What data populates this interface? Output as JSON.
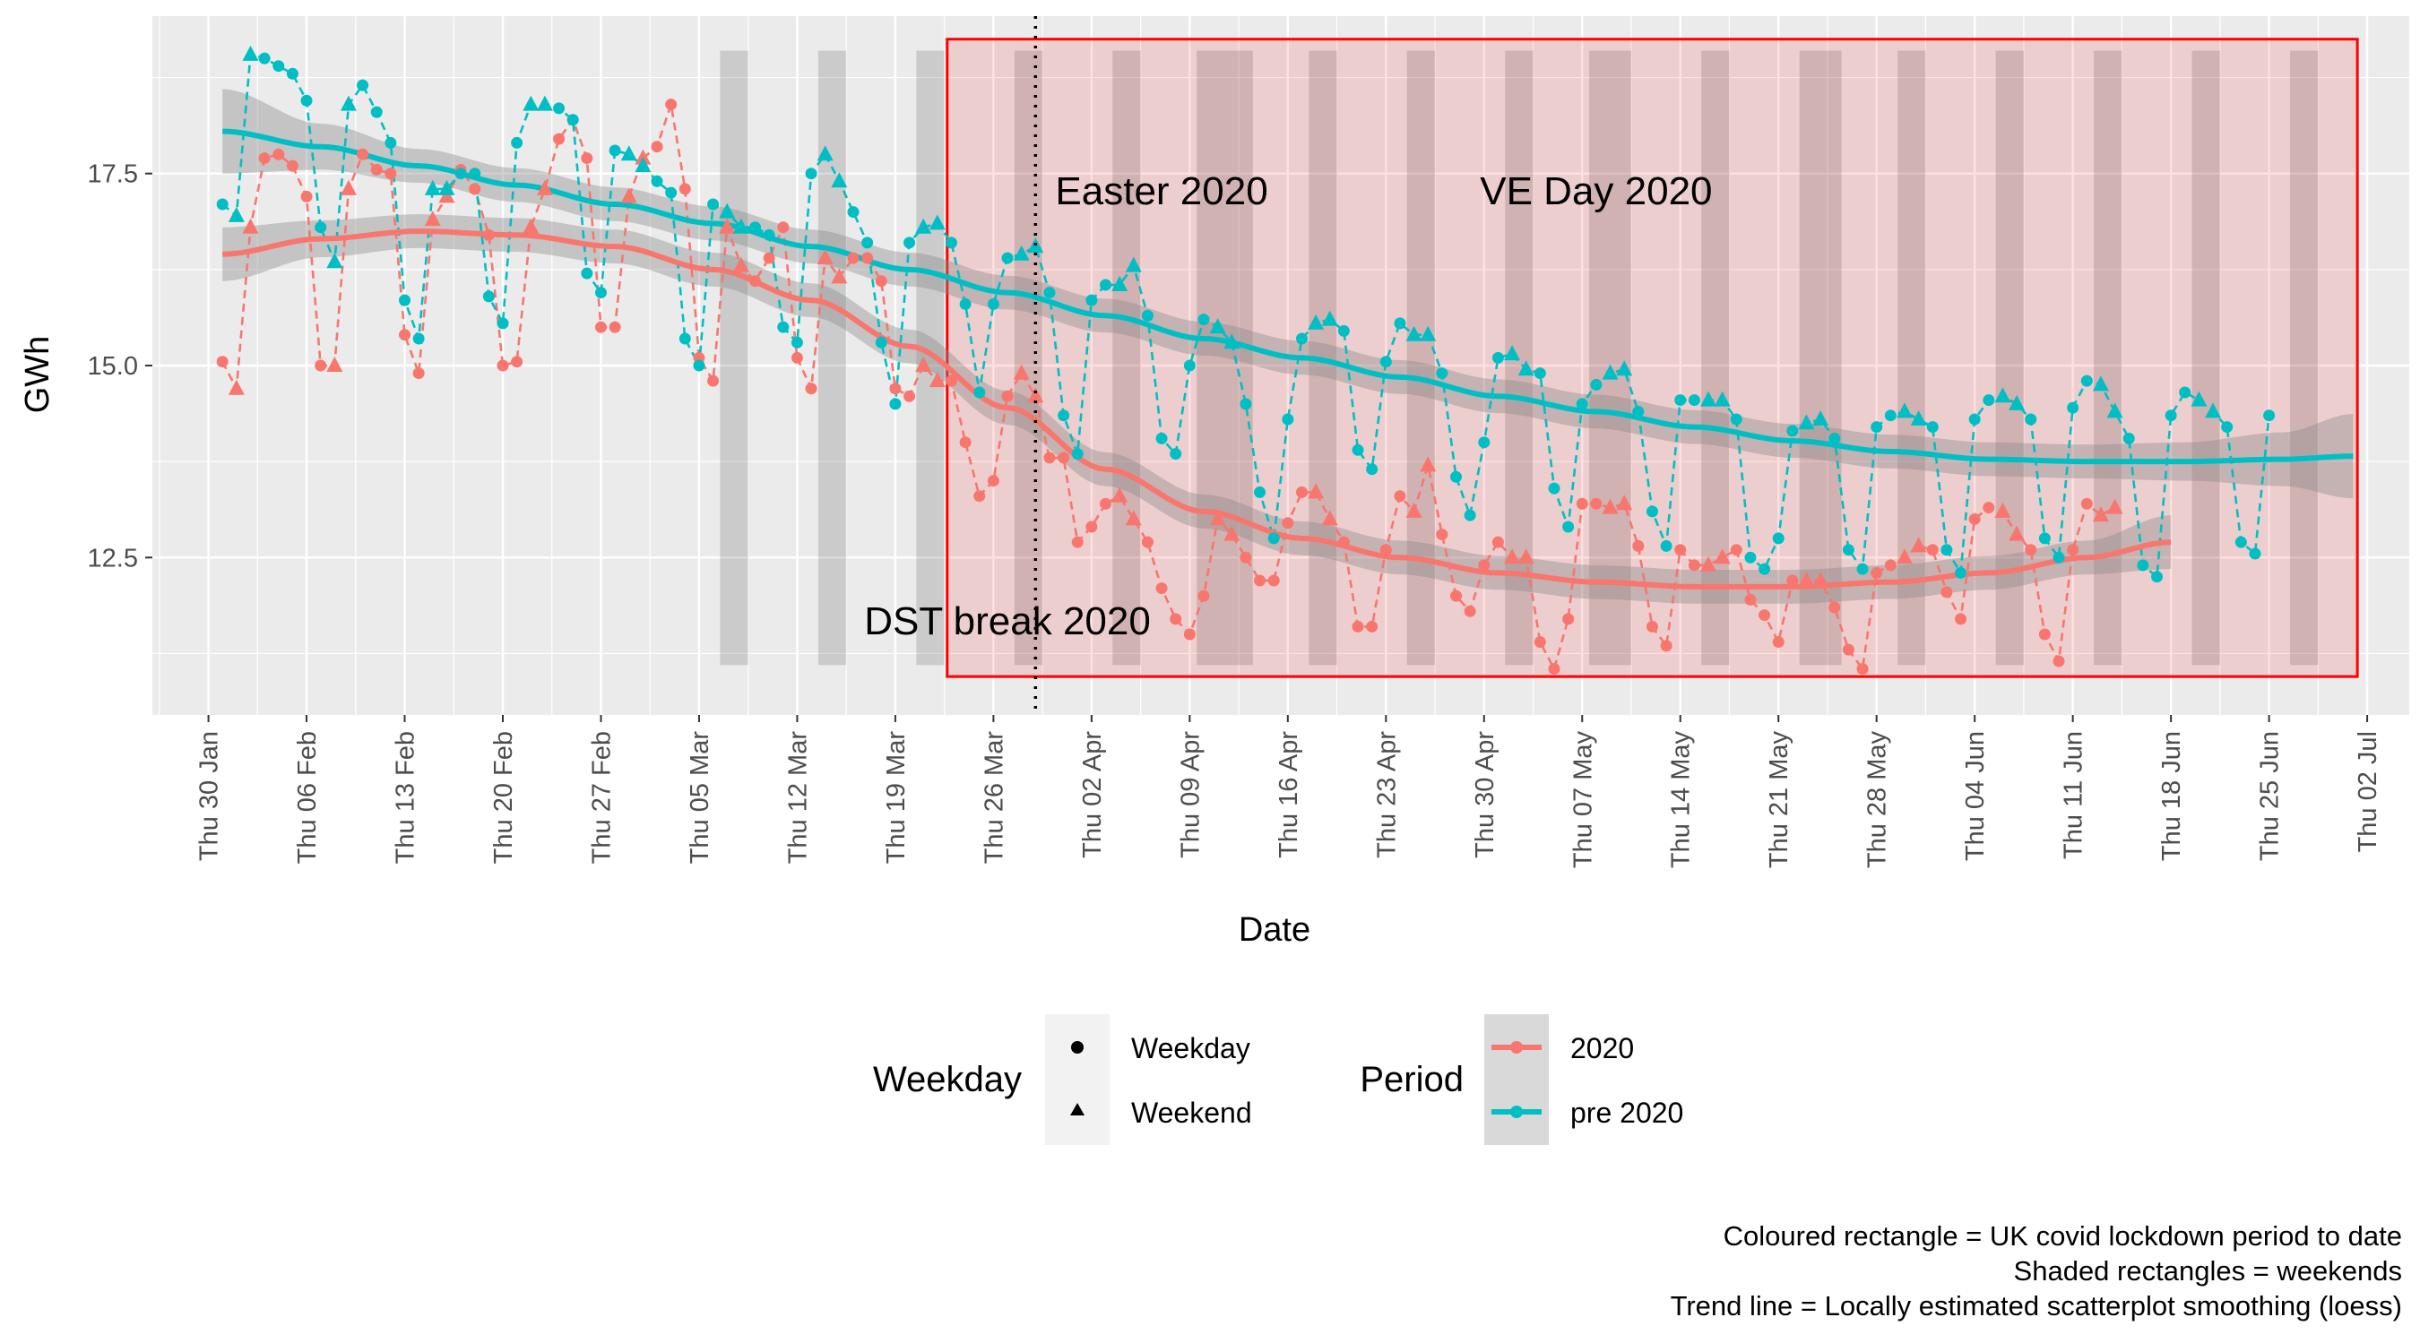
{
  "chart_data": {
    "type": "line",
    "title": "",
    "xlabel": "Date",
    "ylabel": "GWh",
    "x_start": "2020-01-26",
    "x_end": "2020-07-05",
    "ylim": [
      10.45,
      19.55
    ],
    "y_ticks": [
      12.5,
      15.0,
      17.5
    ],
    "y_tick_labels": [
      "12.5",
      "15.0",
      "17.5"
    ],
    "x_ticks": [
      {
        "date": "2020-01-30",
        "label": "Thu 30 Jan"
      },
      {
        "date": "2020-02-06",
        "label": "Thu 06 Feb"
      },
      {
        "date": "2020-02-13",
        "label": "Thu 13 Feb"
      },
      {
        "date": "2020-02-20",
        "label": "Thu 20 Feb"
      },
      {
        "date": "2020-02-27",
        "label": "Thu 27 Feb"
      },
      {
        "date": "2020-03-05",
        "label": "Thu 05 Mar"
      },
      {
        "date": "2020-03-12",
        "label": "Thu 12 Mar"
      },
      {
        "date": "2020-03-19",
        "label": "Thu 19 Mar"
      },
      {
        "date": "2020-03-26",
        "label": "Thu 26 Mar"
      },
      {
        "date": "2020-04-02",
        "label": "Thu 02 Apr"
      },
      {
        "date": "2020-04-09",
        "label": "Thu 09 Apr"
      },
      {
        "date": "2020-04-16",
        "label": "Thu 16 Apr"
      },
      {
        "date": "2020-04-23",
        "label": "Thu 23 Apr"
      },
      {
        "date": "2020-04-30",
        "label": "Thu 30 Apr"
      },
      {
        "date": "2020-05-07",
        "label": "Thu 07 May"
      },
      {
        "date": "2020-05-14",
        "label": "Thu 14 May"
      },
      {
        "date": "2020-05-21",
        "label": "Thu 21 May"
      },
      {
        "date": "2020-05-28",
        "label": "Thu 28 May"
      },
      {
        "date": "2020-06-04",
        "label": "Thu 04 Jun"
      },
      {
        "date": "2020-06-11",
        "label": "Thu 11 Jun"
      },
      {
        "date": "2020-06-18",
        "label": "Thu 18 Jun"
      },
      {
        "date": "2020-06-25",
        "label": "Thu 25 Jun"
      },
      {
        "date": "2020-07-02",
        "label": "Thu 02 Jul"
      }
    ],
    "weekends": [
      {
        "date": "2020-03-07",
        "to": "2020-03-08"
      },
      {
        "date": "2020-03-14",
        "to": "2020-03-15"
      },
      {
        "date": "2020-03-21",
        "to": "2020-03-22"
      },
      {
        "date": "2020-03-28",
        "to": "2020-03-29"
      },
      {
        "date": "2020-04-04",
        "to": "2020-04-05"
      },
      {
        "date": "2020-04-10",
        "to": "2020-04-13"
      },
      {
        "date": "2020-04-18",
        "to": "2020-04-19"
      },
      {
        "date": "2020-04-25",
        "to": "2020-04-26"
      },
      {
        "date": "2020-05-02",
        "to": "2020-05-03"
      },
      {
        "date": "2020-05-08",
        "to": "2020-05-10"
      },
      {
        "date": "2020-05-16",
        "to": "2020-05-17"
      },
      {
        "date": "2020-05-23",
        "to": "2020-05-25"
      },
      {
        "date": "2020-05-30",
        "to": "2020-05-31"
      },
      {
        "date": "2020-06-06",
        "to": "2020-06-07"
      },
      {
        "date": "2020-06-13",
        "to": "2020-06-14"
      },
      {
        "date": "2020-06-20",
        "to": "2020-06-21"
      },
      {
        "date": "2020-06-27",
        "to": "2020-06-28"
      }
    ],
    "weekend_band_ylim": [
      11.1,
      19.1
    ],
    "lockdown": {
      "date": "2020-03-23",
      "to": "2020-07-01",
      "ylim": [
        10.95,
        19.25
      ],
      "color": "#ff0000"
    },
    "dst_break": {
      "date": "2020-03-29"
    },
    "annotations": [
      {
        "text": "Easter 2020",
        "date": "2020-04-07",
        "y": 17.1
      },
      {
        "text": "VE Day 2020",
        "date": "2020-05-08",
        "y": 17.1
      },
      {
        "text": "DST break 2020",
        "date": "2020-03-27",
        "y": 11.5
      }
    ],
    "series": [
      {
        "name": "2020",
        "color": "#F8766D",
        "start": "2020-01-31",
        "values": [
          15.05,
          14.7,
          16.8,
          17.7,
          17.75,
          17.6,
          17.2,
          15.0,
          15.0,
          17.3,
          17.75,
          17.55,
          17.5,
          15.4,
          14.9,
          16.9,
          17.2,
          17.55,
          17.3,
          16.7,
          15.0,
          15.05,
          16.8,
          17.3,
          17.95,
          18.2,
          17.7,
          15.5,
          15.5,
          17.2,
          17.7,
          17.85,
          18.4,
          17.3,
          15.1,
          14.8,
          16.8,
          16.3,
          16.1,
          16.4,
          16.8,
          15.1,
          14.7,
          16.4,
          16.15,
          16.4,
          16.4,
          16.1,
          14.7,
          14.6,
          15.0,
          14.8,
          14.8,
          14.0,
          13.3,
          13.5,
          14.6,
          14.9,
          14.6,
          13.8,
          13.8,
          12.7,
          12.9,
          13.2,
          13.3,
          13.0,
          12.7,
          12.1,
          11.7,
          11.5,
          12.0,
          13.0,
          12.8,
          12.5,
          12.2,
          12.2,
          12.95,
          13.35,
          13.35,
          13.0,
          12.7,
          11.6,
          11.6,
          12.6,
          13.3,
          13.1,
          13.7,
          12.8,
          12.0,
          11.8,
          12.4,
          12.7,
          12.5,
          12.5,
          11.4,
          11.05,
          11.7,
          13.2,
          13.2,
          13.15,
          13.2,
          12.65,
          11.6,
          11.35,
          12.6,
          12.4,
          12.4,
          12.5,
          12.6,
          11.95,
          11.75,
          11.4,
          12.2,
          12.2,
          12.2,
          11.85,
          11.3,
          11.05,
          12.3,
          12.4,
          12.5,
          12.65,
          12.6,
          12.05,
          11.7,
          13.0,
          13.15,
          13.1,
          12.8,
          12.6,
          11.5,
          11.15,
          12.6,
          13.2,
          13.05,
          13.15
        ]
      },
      {
        "name": "pre 2020",
        "color": "#00BFC4",
        "start": "2020-01-31",
        "values": [
          17.1,
          16.95,
          19.05,
          19.0,
          18.9,
          18.8,
          18.45,
          16.8,
          16.35,
          18.4,
          18.65,
          18.3,
          17.9,
          15.85,
          15.35,
          17.3,
          17.3,
          17.5,
          17.5,
          15.9,
          15.55,
          17.9,
          18.4,
          18.4,
          18.35,
          18.2,
          16.2,
          15.95,
          17.8,
          17.75,
          17.6,
          17.4,
          17.25,
          15.35,
          15.0,
          17.1,
          17.0,
          16.8,
          16.8,
          16.7,
          15.5,
          15.3,
          17.5,
          17.75,
          17.4,
          17.0,
          16.6,
          15.3,
          14.5,
          16.6,
          16.8,
          16.85,
          16.6,
          15.8,
          14.65,
          15.8,
          16.4,
          16.45,
          16.55,
          15.95,
          14.35,
          13.85,
          15.85,
          16.05,
          16.05,
          16.3,
          15.65,
          14.05,
          13.85,
          15.0,
          15.6,
          15.5,
          15.3,
          14.5,
          13.35,
          12.75,
          14.3,
          15.35,
          15.55,
          15.6,
          15.45,
          13.9,
          13.65,
          15.05,
          15.55,
          15.4,
          15.4,
          14.9,
          13.55,
          13.05,
          14.0,
          15.1,
          15.15,
          14.95,
          14.9,
          13.4,
          12.9,
          14.5,
          14.75,
          14.9,
          14.95,
          14.4,
          13.1,
          12.65,
          14.55,
          14.55,
          14.55,
          14.55,
          14.3,
          12.5,
          12.35,
          12.75,
          14.15,
          14.25,
          14.3,
          14.05,
          12.6,
          12.35,
          14.2,
          14.35,
          14.4,
          14.3,
          14.2,
          12.6,
          12.3,
          14.3,
          14.55,
          14.6,
          14.5,
          14.3,
          12.75,
          12.5,
          14.45,
          14.8,
          14.75,
          14.4,
          14.05,
          12.4,
          12.25,
          14.35,
          14.65,
          14.55,
          14.4,
          14.2,
          12.7,
          12.55,
          14.35
        ]
      }
    ],
    "trends": [
      {
        "name": "2020",
        "color": "#F8766D",
        "x_start": "2020-01-31",
        "x_end": "2020-06-18",
        "anchors": [
          [
            "2020-01-31",
            16.45,
            0.35
          ],
          [
            "2020-02-07",
            16.65,
            0.24
          ],
          [
            "2020-02-14",
            16.75,
            0.22
          ],
          [
            "2020-02-21",
            16.7,
            0.22
          ],
          [
            "2020-02-28",
            16.55,
            0.22
          ],
          [
            "2020-03-06",
            16.25,
            0.22
          ],
          [
            "2020-03-13",
            15.85,
            0.22
          ],
          [
            "2020-03-20",
            15.25,
            0.22
          ],
          [
            "2020-03-27",
            14.45,
            0.22
          ],
          [
            "2020-04-03",
            13.65,
            0.22
          ],
          [
            "2020-04-10",
            13.1,
            0.22
          ],
          [
            "2020-04-17",
            12.75,
            0.22
          ],
          [
            "2020-04-24",
            12.5,
            0.22
          ],
          [
            "2020-05-01",
            12.3,
            0.22
          ],
          [
            "2020-05-08",
            12.18,
            0.22
          ],
          [
            "2020-05-15",
            12.12,
            0.22
          ],
          [
            "2020-05-22",
            12.12,
            0.22
          ],
          [
            "2020-05-29",
            12.18,
            0.22
          ],
          [
            "2020-06-05",
            12.3,
            0.22
          ],
          [
            "2020-06-12",
            12.5,
            0.22
          ],
          [
            "2020-06-18",
            12.7,
            0.35
          ]
        ]
      },
      {
        "name": "pre 2020",
        "color": "#00BFC4",
        "x_start": "2020-01-31",
        "x_end": "2020-07-01",
        "anchors": [
          [
            "2020-01-31",
            18.05,
            0.55
          ],
          [
            "2020-02-07",
            17.85,
            0.3
          ],
          [
            "2020-02-14",
            17.6,
            0.22
          ],
          [
            "2020-02-21",
            17.35,
            0.22
          ],
          [
            "2020-02-28",
            17.1,
            0.22
          ],
          [
            "2020-03-06",
            16.85,
            0.22
          ],
          [
            "2020-03-13",
            16.55,
            0.22
          ],
          [
            "2020-03-20",
            16.25,
            0.22
          ],
          [
            "2020-03-27",
            15.95,
            0.22
          ],
          [
            "2020-04-03",
            15.65,
            0.22
          ],
          [
            "2020-04-10",
            15.35,
            0.22
          ],
          [
            "2020-04-17",
            15.1,
            0.22
          ],
          [
            "2020-04-24",
            14.85,
            0.22
          ],
          [
            "2020-05-01",
            14.6,
            0.22
          ],
          [
            "2020-05-08",
            14.4,
            0.22
          ],
          [
            "2020-05-15",
            14.2,
            0.22
          ],
          [
            "2020-05-22",
            14.02,
            0.22
          ],
          [
            "2020-05-29",
            13.88,
            0.22
          ],
          [
            "2020-06-05",
            13.78,
            0.22
          ],
          [
            "2020-06-12",
            13.75,
            0.22
          ],
          [
            "2020-06-19",
            13.75,
            0.25
          ],
          [
            "2020-06-26",
            13.78,
            0.35
          ],
          [
            "2020-07-01",
            13.82,
            0.55
          ]
        ]
      }
    ],
    "legend": {
      "position": "bottom",
      "shape_title": "Weekday",
      "shape_items": [
        {
          "label": "Weekday",
          "shape": "circle"
        },
        {
          "label": "Weekend",
          "shape": "triangle"
        }
      ],
      "color_title": "Period",
      "color_items": [
        {
          "label": "2020",
          "color": "#F8766D"
        },
        {
          "label": "pre 2020",
          "color": "#00BFC4"
        }
      ]
    },
    "caption": [
      "Coloured rectangle = UK covid lockdown period to date",
      "Shaded rectangles = weekends",
      "Trend line = Locally estimated scatterplot smoothing (loess)"
    ],
    "grid": true
  }
}
